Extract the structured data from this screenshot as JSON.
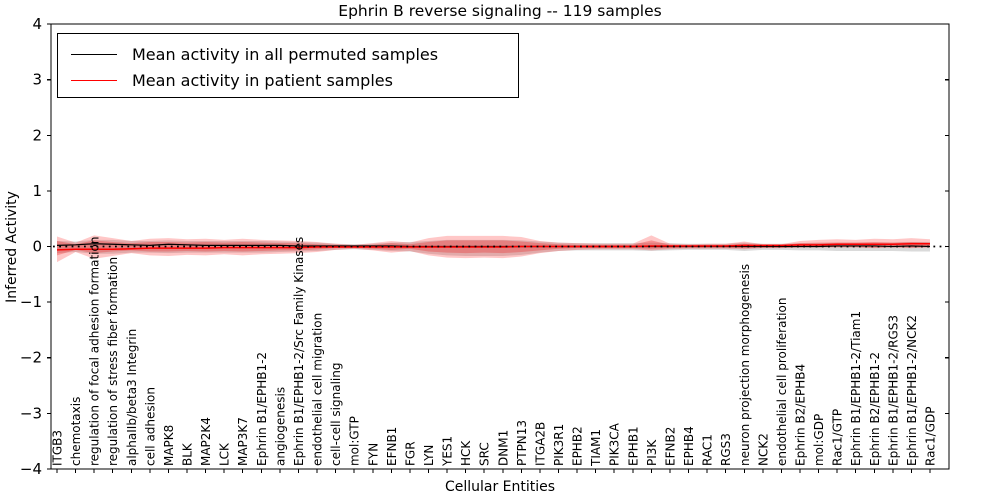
{
  "legend": {
    "items": [
      {
        "label": "Mean activity in all permuted samples",
        "color": "#000000"
      },
      {
        "label": "Mean activity in patient samples",
        "color": "#ff0000"
      }
    ]
  },
  "chart_data": {
    "type": "line",
    "title": "Ephrin B reverse signaling -- 119 samples",
    "xlabel": "Cellular Entities",
    "ylabel": "Inferred Activity",
    "ylim": [
      -4,
      4
    ],
    "yticks": [
      4,
      3,
      2,
      1,
      0,
      -1,
      -2,
      -3,
      -4
    ],
    "ytick_labels": [
      "4",
      "3",
      "2",
      "1",
      "0",
      "−1",
      "−2",
      "−3",
      "−4"
    ],
    "grid": false,
    "legend_position": "upper left",
    "categories": [
      "ITGB3",
      "chemotaxis",
      "regulation of focal adhesion formation",
      "regulation of stress fiber formation",
      "alphaIIb/beta3 Integrin",
      "cell adhesion",
      "MAPK8",
      "BLK",
      "MAP2K4",
      "LCK",
      "MAP3K7",
      "Ephrin B1/EPHB1-2",
      "angiogenesis",
      "Ephrin B1/EPHB1-2/Src Family Kinases",
      "endothelial cell migration",
      "cell-cell signaling",
      "mol:GTP",
      "FYN",
      "EFNB1",
      "FGR",
      "LYN",
      "YES1",
      "HCK",
      "SRC",
      "DNM1",
      "PTPN13",
      "ITGA2B",
      "PIK3R1",
      "EPHB2",
      "TIAM1",
      "PIK3CA",
      "EPHB1",
      "PI3K",
      "EFNB2",
      "EPHB4",
      "RAC1",
      "RGS3",
      "neuron projection morphogenesis",
      "NCK2",
      "endothelial cell proliferation",
      "Ephrin B2/EPHB4",
      "mol:GDP",
      "Rac1/GTP",
      "Ephrin B1/EPHB1-2/Tiam1",
      "Ephrin B2/EPHB1-2",
      "Ephrin B1/EPHB1-2/RGS3",
      "Ephrin B1/EPHB1-2/NCK2",
      "Rac1/GDP"
    ],
    "series": [
      {
        "name": "Mean activity in all permuted samples",
        "color": "#000000",
        "style": "solid",
        "width": 1.2,
        "values": [
          0.02,
          0.03,
          0.05,
          0.04,
          0.03,
          0.02,
          0.04,
          0.03,
          0.02,
          0.02,
          0.02,
          0.02,
          0.02,
          0.01,
          0.01,
          0.01,
          0.01,
          0.01,
          0.01,
          0.0,
          0.0,
          0.0,
          0.0,
          0.0,
          0.0,
          0.0,
          0.0,
          0.0,
          0.0,
          0.0,
          0.0,
          0.0,
          0.0,
          0.0,
          0.0,
          0.0,
          0.0,
          0.0,
          0.0,
          0.0,
          0.0,
          0.0,
          0.01,
          0.01,
          0.01,
          0.0,
          0.01,
          0.0
        ]
      },
      {
        "name": "Mean activity in patient samples",
        "color": "#ff0000",
        "style": "solid",
        "width": 1.5,
        "values": [
          -0.06,
          -0.05,
          -0.05,
          -0.05,
          -0.04,
          -0.03,
          -0.03,
          -0.03,
          -0.03,
          -0.02,
          -0.02,
          -0.02,
          -0.02,
          -0.02,
          -0.01,
          -0.01,
          -0.01,
          -0.01,
          -0.01,
          -0.01,
          -0.01,
          -0.01,
          -0.01,
          -0.01,
          -0.01,
          0.0,
          0.0,
          0.0,
          0.0,
          0.0,
          0.0,
          0.0,
          0.01,
          0.01,
          0.01,
          0.01,
          0.01,
          0.02,
          0.02,
          0.02,
          0.03,
          0.03,
          0.04,
          0.04,
          0.04,
          0.04,
          0.05,
          0.05
        ]
      },
      {
        "name": "zero-baseline",
        "color": "#000000",
        "style": "dotted",
        "width": 1.7,
        "constant": 0
      }
    ],
    "bands": [
      {
        "name": "permuted-samples-band",
        "color": "#8c8c8c",
        "opacity": 0.32,
        "upper": [
          0.1,
          0.09,
          0.12,
          0.12,
          0.1,
          0.1,
          0.11,
          0.1,
          0.1,
          0.1,
          0.1,
          0.1,
          0.09,
          0.08,
          0.07,
          0.05,
          0.04,
          0.05,
          0.07,
          0.08,
          0.1,
          0.12,
          0.12,
          0.12,
          0.12,
          0.11,
          0.09,
          0.07,
          0.06,
          0.06,
          0.06,
          0.06,
          0.07,
          0.06,
          0.05,
          0.05,
          0.05,
          0.07,
          0.05,
          0.05,
          0.06,
          0.06,
          0.07,
          0.07,
          0.07,
          0.07,
          0.08,
          0.08
        ],
        "lower": [
          -0.12,
          -0.1,
          -0.13,
          -0.13,
          -0.11,
          -0.11,
          -0.12,
          -0.11,
          -0.11,
          -0.11,
          -0.11,
          -0.11,
          -0.1,
          -0.09,
          -0.08,
          -0.06,
          -0.05,
          -0.06,
          -0.08,
          -0.09,
          -0.13,
          -0.16,
          -0.17,
          -0.17,
          -0.17,
          -0.15,
          -0.11,
          -0.08,
          -0.07,
          -0.07,
          -0.07,
          -0.07,
          -0.08,
          -0.07,
          -0.06,
          -0.06,
          -0.06,
          -0.08,
          -0.06,
          -0.06,
          -0.07,
          -0.07,
          -0.08,
          -0.08,
          -0.08,
          -0.08,
          -0.09,
          -0.09
        ]
      },
      {
        "name": "patient-samples-band-outer",
        "color": "#ff0000",
        "opacity": 0.22,
        "upper": [
          0.18,
          0.07,
          0.2,
          0.15,
          0.1,
          0.14,
          0.15,
          0.13,
          0.14,
          0.12,
          0.14,
          0.12,
          0.11,
          0.1,
          0.08,
          0.05,
          0.03,
          0.06,
          0.1,
          0.07,
          0.15,
          0.19,
          0.19,
          0.19,
          0.19,
          0.17,
          0.1,
          0.07,
          0.06,
          0.05,
          0.05,
          0.05,
          0.2,
          0.05,
          0.04,
          0.05,
          0.05,
          0.09,
          0.04,
          0.04,
          0.1,
          0.12,
          0.13,
          0.12,
          0.14,
          0.13,
          0.15,
          0.13
        ],
        "lower": [
          -0.28,
          -0.1,
          -0.22,
          -0.17,
          -0.12,
          -0.16,
          -0.17,
          -0.15,
          -0.16,
          -0.14,
          -0.16,
          -0.14,
          -0.13,
          -0.12,
          -0.1,
          -0.06,
          -0.04,
          -0.07,
          -0.11,
          -0.08,
          -0.16,
          -0.2,
          -0.21,
          -0.2,
          -0.21,
          -0.18,
          -0.12,
          -0.08,
          -0.06,
          -0.05,
          -0.05,
          -0.05,
          -0.07,
          -0.05,
          -0.04,
          -0.04,
          -0.04,
          -0.05,
          -0.03,
          -0.03,
          -0.02,
          -0.02,
          -0.02,
          -0.02,
          -0.03,
          -0.02,
          -0.03,
          -0.02
        ]
      },
      {
        "name": "patient-samples-band-inner",
        "color": "#e83030",
        "opacity": 0.35,
        "upper": [
          0.1,
          0.04,
          0.11,
          0.08,
          0.06,
          0.08,
          0.08,
          0.07,
          0.08,
          0.07,
          0.08,
          0.07,
          0.06,
          0.06,
          0.04,
          0.03,
          0.02,
          0.03,
          0.06,
          0.04,
          0.08,
          0.11,
          0.11,
          0.11,
          0.11,
          0.09,
          0.06,
          0.04,
          0.03,
          0.03,
          0.03,
          0.03,
          0.11,
          0.03,
          0.02,
          0.03,
          0.03,
          0.05,
          0.02,
          0.02,
          0.06,
          0.07,
          0.07,
          0.07,
          0.08,
          0.07,
          0.08,
          0.07
        ],
        "lower": [
          -0.16,
          -0.06,
          -0.12,
          -0.09,
          -0.07,
          -0.09,
          -0.09,
          -0.08,
          -0.09,
          -0.08,
          -0.09,
          -0.08,
          -0.07,
          -0.07,
          -0.05,
          -0.03,
          -0.02,
          -0.04,
          -0.06,
          -0.04,
          -0.09,
          -0.11,
          -0.12,
          -0.11,
          -0.12,
          -0.1,
          -0.07,
          -0.04,
          -0.03,
          -0.03,
          -0.03,
          -0.03,
          -0.04,
          -0.03,
          -0.02,
          -0.02,
          -0.02,
          -0.03,
          -0.02,
          -0.02,
          -0.01,
          -0.01,
          -0.01,
          -0.01,
          -0.02,
          -0.01,
          -0.02,
          -0.01
        ]
      }
    ]
  }
}
